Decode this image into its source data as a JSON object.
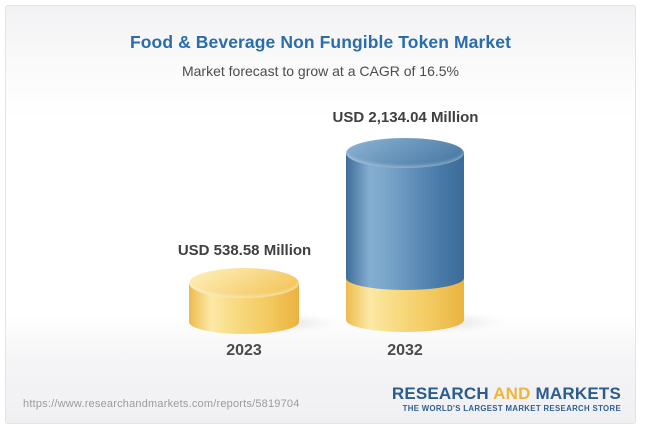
{
  "header": {
    "title": "Food & Beverage Non Fungible Token Market",
    "subtitle": "Market forecast to grow at a CAGR of 16.5%"
  },
  "chart_data": {
    "type": "bar",
    "variant": "3d-cylinder",
    "categories": [
      "2023",
      "2032"
    ],
    "values": [
      538.58,
      2134.04
    ],
    "value_labels": [
      "USD 538.58 Million",
      "USD 2,134.04 Million"
    ],
    "unit": "USD Million",
    "cagr_pct": 16.5,
    "title": "Food & Beverage Non Fungible Token Market",
    "xlabel": "",
    "ylabel": "",
    "legend": "none",
    "axes_shown": false,
    "notes": "2032 cylinder shows a yellow base segment equal to the 2023 value with blue growth portion above",
    "colors": {
      "bar_2023": "#f3cb62",
      "bar_2032_growth": "#5d8cb7",
      "bar_2032_base": "#f3cb62"
    }
  },
  "footer": {
    "url": "https://www.researchandmarkets.com/reports/5819704",
    "logo": {
      "research": "RESEARCH",
      "and": "AND",
      "markets": "MARKETS",
      "tagline": "THE WORLD'S LARGEST MARKET RESEARCH STORE"
    }
  },
  "theme": {
    "title_color": "#2b6cab",
    "subtitle_color": "#4c4c4c",
    "label_color": "#3f3f3f",
    "logo_blue": "#2b5c8e",
    "logo_gold": "#f0b63c",
    "card_top_gray": "#f2f2f4",
    "card_bottom_gray": "#f0f0f3"
  }
}
